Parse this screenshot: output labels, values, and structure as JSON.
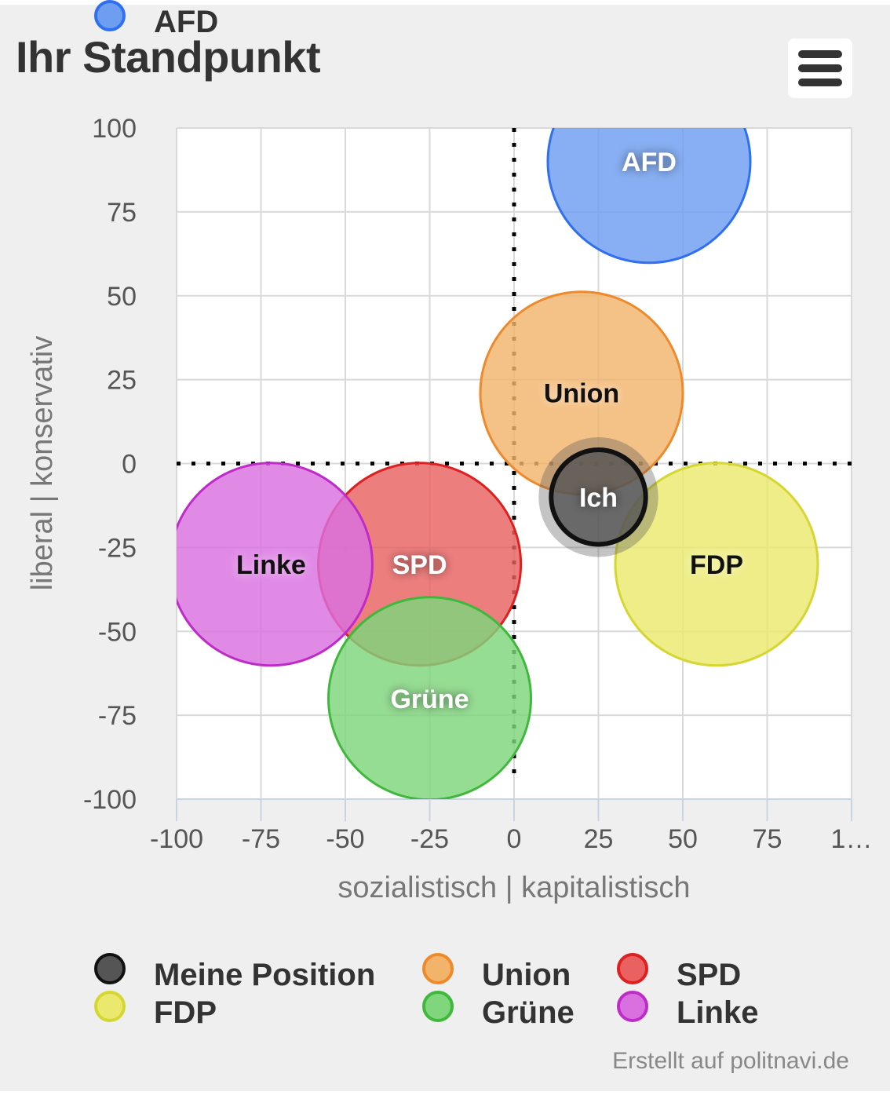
{
  "header": {
    "title": "Ihr Standpunkt",
    "menu_icon": "hamburger-menu-icon"
  },
  "chart_data": {
    "type": "bubble",
    "xlabel": "sozialistisch | kapitalistisch",
    "ylabel": "liberal | konservativ",
    "xlim": [
      -100,
      100
    ],
    "ylim": [
      -100,
      100
    ],
    "x_ticks": [
      "-100",
      "-75",
      "-50",
      "-25",
      "0",
      "25",
      "50",
      "75",
      "1…"
    ],
    "y_ticks": [
      "100",
      "75",
      "50",
      "25",
      "0",
      "-25",
      "-50",
      "-75",
      "-100"
    ],
    "grid": true,
    "zero_lines": "dotted",
    "legend_position": "bottom",
    "series": [
      {
        "name": "Meine Position",
        "label": "Ich",
        "x": 25,
        "y": -10,
        "radius": 14,
        "color": "#555555",
        "border": "#111111",
        "label_color": "#ffffff"
      },
      {
        "name": "Union",
        "label": "Union",
        "x": 20,
        "y": 21,
        "radius": 30,
        "color": "#f2b36b",
        "border": "#ee8a2c",
        "label_color": "#111111"
      },
      {
        "name": "SPD",
        "label": "SPD",
        "x": -28,
        "y": -30,
        "radius": 30,
        "color": "#e96161",
        "border": "#dd2020",
        "label_color": "#ffffff"
      },
      {
        "name": "FDP",
        "label": "FDP",
        "x": 60,
        "y": -30,
        "radius": 30,
        "color": "#eae96e",
        "border": "#d6d632",
        "label_color": "#111111"
      },
      {
        "name": "Grüne",
        "label": "Grüne",
        "x": -25,
        "y": -70,
        "radius": 30,
        "color": "#7fd67c",
        "border": "#3fb83c",
        "label_color": "#ffffff"
      },
      {
        "name": "Linke",
        "label": "Linke",
        "x": -72,
        "y": -30,
        "radius": 30,
        "color": "#d970e0",
        "border": "#bf2bc8",
        "label_color": "#111111"
      },
      {
        "name": "AFD",
        "label": "AFD",
        "x": 40,
        "y": 90,
        "radius": 30,
        "color": "#6e9ef0",
        "border": "#2f6ff0",
        "label_color": "#ffffff"
      }
    ]
  },
  "credits": "Erstellt auf politnavi.de"
}
